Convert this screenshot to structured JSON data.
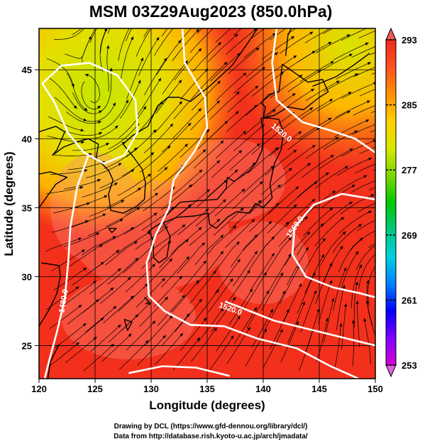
{
  "title": "MSM 03Z29Aug2023 (850.0hPa)",
  "xlabel": "Longitude (degrees)",
  "ylabel": "Latitude  (degrees)",
  "credits": {
    "line1": "Drawing by DCL (https://www.gfd-dennou.org/library/dcl/)",
    "line2": "Data from http://database.rish.kyoto-u.ac.jp/arch/jmadata/"
  },
  "chart_data": {
    "type": "heatmap",
    "variable_shading": "temperature (K)",
    "variable_contours": "geopotential height (m)",
    "overlay": "wind streamlines",
    "xlim": [
      120,
      150
    ],
    "ylim": [
      22.6,
      48
    ],
    "x_ticks": [
      "120",
      "125",
      "130",
      "135",
      "140",
      "145",
      "150"
    ],
    "y_ticks": [
      "25",
      "30",
      "35",
      "40",
      "45"
    ],
    "x_tick_values": [
      120,
      125,
      130,
      135,
      140,
      145,
      150
    ],
    "y_tick_values": [
      25,
      30,
      35,
      40,
      45
    ],
    "grid": true,
    "colorbar": {
      "min": 253,
      "max": 293,
      "tick_labels": [
        "293",
        "285",
        "277",
        "269",
        "261",
        "253"
      ],
      "tick_values": [
        293,
        285,
        277,
        269,
        261,
        253
      ],
      "colors": [
        "#d400d4",
        "#8000ff",
        "#0000ff",
        "#0080ff",
        "#00d0e0",
        "#00c87a",
        "#00c800",
        "#7ad800",
        "#d8e800",
        "#ffd000",
        "#ff9000",
        "#ff5020",
        "#ee2a1a"
      ]
    },
    "contour_labels": [
      {
        "text": "1520.0",
        "lon": 141.5,
        "lat": 40.3
      },
      {
        "text": "1560.0",
        "lon": 143.0,
        "lat": 33.5
      },
      {
        "text": "1520.0",
        "lon": 137.0,
        "lat": 27.5
      },
      {
        "text": "1480.0",
        "lon": 122.4,
        "lat": 28.2
      }
    ]
  }
}
